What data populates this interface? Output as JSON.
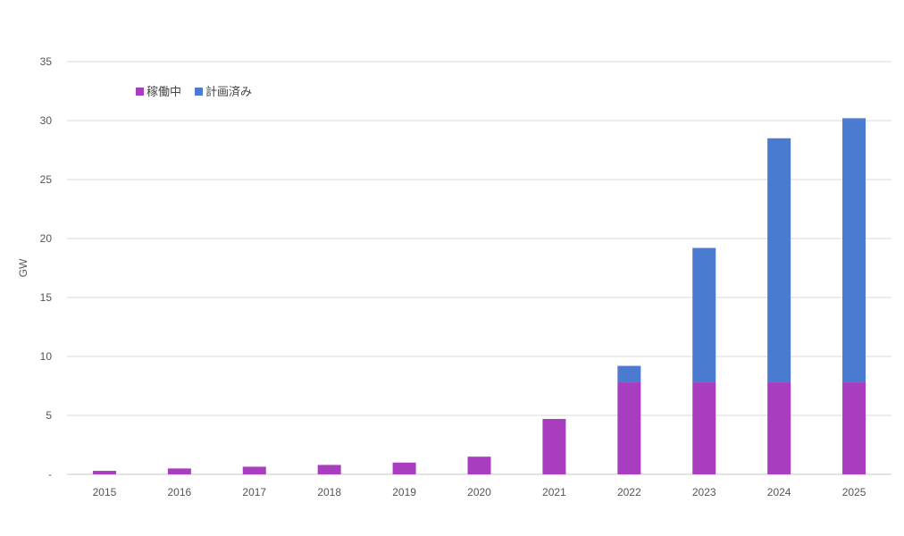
{
  "chart_data": {
    "type": "bar",
    "stacked": true,
    "title": "",
    "xlabel": "",
    "ylabel": "GW",
    "ylim": [
      0,
      35
    ],
    "yticks": [
      0,
      5,
      10,
      15,
      20,
      25,
      30,
      35
    ],
    "ytick_labels": [
      "-",
      "5",
      "10",
      "15",
      "20",
      "25",
      "30",
      "35"
    ],
    "grid": true,
    "legend_position": "top-left",
    "categories": [
      "2015",
      "2016",
      "2017",
      "2018",
      "2019",
      "2020",
      "2021",
      "2022",
      "2023",
      "2024",
      "2025"
    ],
    "series": [
      {
        "name": "稼働中",
        "color": "#a83ebf",
        "values": [
          0.3,
          0.5,
          0.65,
          0.8,
          1.0,
          1.5,
          4.7,
          7.8,
          7.8,
          7.8,
          7.8
        ]
      },
      {
        "name": "計画済み",
        "color": "#4a7bd0",
        "values": [
          0,
          0,
          0,
          0,
          0,
          0,
          0,
          1.4,
          11.4,
          20.7,
          22.4
        ]
      }
    ]
  }
}
